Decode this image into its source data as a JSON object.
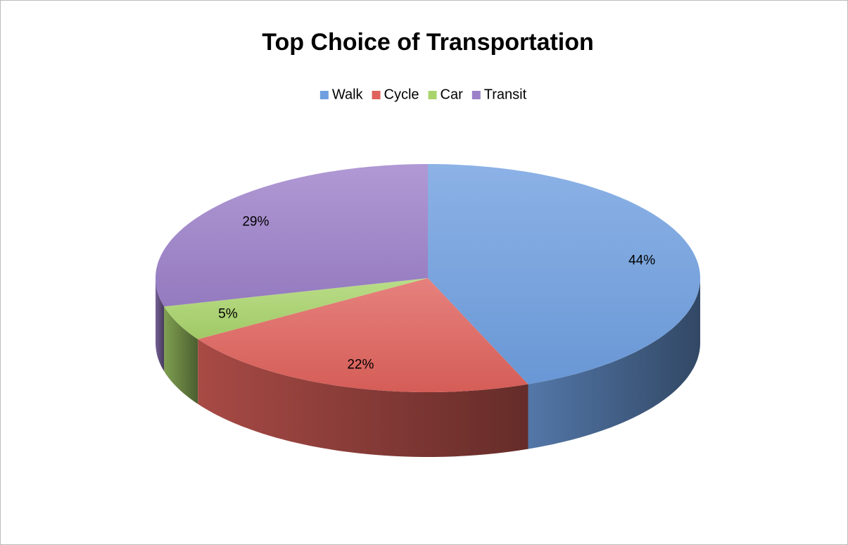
{
  "chart_data": {
    "type": "pie",
    "title": "Top Choice of Transportation",
    "categories": [
      "Walk",
      "Cycle",
      "Car",
      "Transit"
    ],
    "values": [
      44,
      22,
      5,
      29
    ],
    "value_labels": [
      "44%",
      "22%",
      "5%",
      "29%"
    ],
    "colors": [
      "#6f9fe0",
      "#e0625c",
      "#a9d46b",
      "#9c80c9"
    ],
    "legend": "top"
  }
}
